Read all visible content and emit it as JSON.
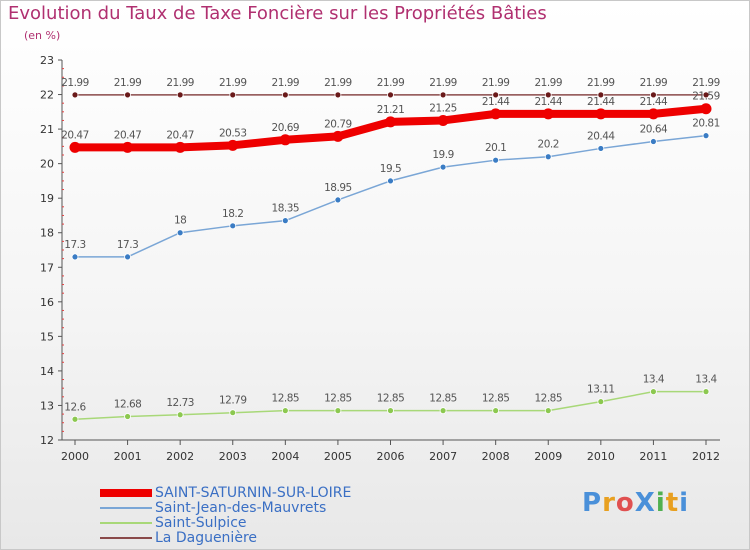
{
  "header": {
    "title": "Evolution du Taux de Taxe Foncière sur les Propriétés Bâties",
    "subtitle": "(en %)"
  },
  "logo": {
    "text": "ProXiti",
    "colors": [
      "#4a90d9",
      "#e8a020",
      "#e05050",
      "#4a90d9",
      "#50b050",
      "#e8a020",
      "#4a90d9"
    ]
  },
  "chart_data": {
    "type": "line",
    "title": "Evolution du Taux de Taxe Foncière sur les Propriétés Bâties",
    "ylabel": "(en %)",
    "xlabel": "",
    "categories": [
      "2000",
      "2001",
      "2002",
      "2003",
      "2004",
      "2005",
      "2006",
      "2007",
      "2008",
      "2009",
      "2010",
      "2011",
      "2012"
    ],
    "ylim": [
      12,
      23
    ],
    "yticks": [
      12,
      13,
      14,
      15,
      16,
      17,
      18,
      19,
      20,
      21,
      22,
      23
    ],
    "grid": false,
    "legend_position": "bottom-left",
    "series": [
      {
        "name": "SAINT-SATURNIN-SUR-LOIRE",
        "color": "#ee0000",
        "marker": "#ee0000",
        "values": [
          20.47,
          20.47,
          20.47,
          20.53,
          20.69,
          20.79,
          21.21,
          21.25,
          21.44,
          21.44,
          21.44,
          21.44,
          21.59
        ],
        "labels": [
          "20.47",
          "20.47",
          "20.47",
          "20.53",
          "20.69",
          "20.79",
          "21.21",
          "21.25",
          "21.44",
          "21.44",
          "21.44",
          "21.44",
          "21.59"
        ]
      },
      {
        "name": "Saint-Jean-des-Mauvrets",
        "color": "#7aa6d6",
        "marker": "#3a7cc4",
        "values": [
          17.3,
          17.3,
          18,
          18.2,
          18.35,
          18.95,
          19.5,
          19.9,
          20.1,
          20.2,
          20.44,
          20.64,
          20.81
        ],
        "labels": [
          "17.3",
          "17.3",
          "18",
          "18.2",
          "18.35",
          "18.95",
          "19.5",
          "19.9",
          "20.1",
          "20.2",
          "20.44",
          "20.64",
          "20.81"
        ]
      },
      {
        "name": "Saint-Sulpice",
        "color": "#a8d878",
        "marker": "#8cc850",
        "values": [
          12.6,
          12.68,
          12.73,
          12.79,
          12.85,
          12.85,
          12.85,
          12.85,
          12.85,
          12.85,
          13.11,
          13.4,
          13.4
        ],
        "labels": [
          "12.6",
          "12.68",
          "12.73",
          "12.79",
          "12.85",
          "12.85",
          "12.85",
          "12.85",
          "12.85",
          "12.85",
          "13.11",
          "13.4",
          "13.4"
        ]
      },
      {
        "name": "La Daguenière",
        "color": "#8a4a4a",
        "marker": "#6a1a1a",
        "values": [
          21.99,
          21.99,
          21.99,
          21.99,
          21.99,
          21.99,
          21.99,
          21.99,
          21.99,
          21.99,
          21.99,
          21.99,
          21.99
        ],
        "labels": [
          "21.99",
          "21.99",
          "21.99",
          "21.99",
          "21.99",
          "21.99",
          "21.99",
          "21.99",
          "21.99",
          "21.99",
          "21.99",
          "21.99",
          "21.99"
        ]
      }
    ]
  }
}
